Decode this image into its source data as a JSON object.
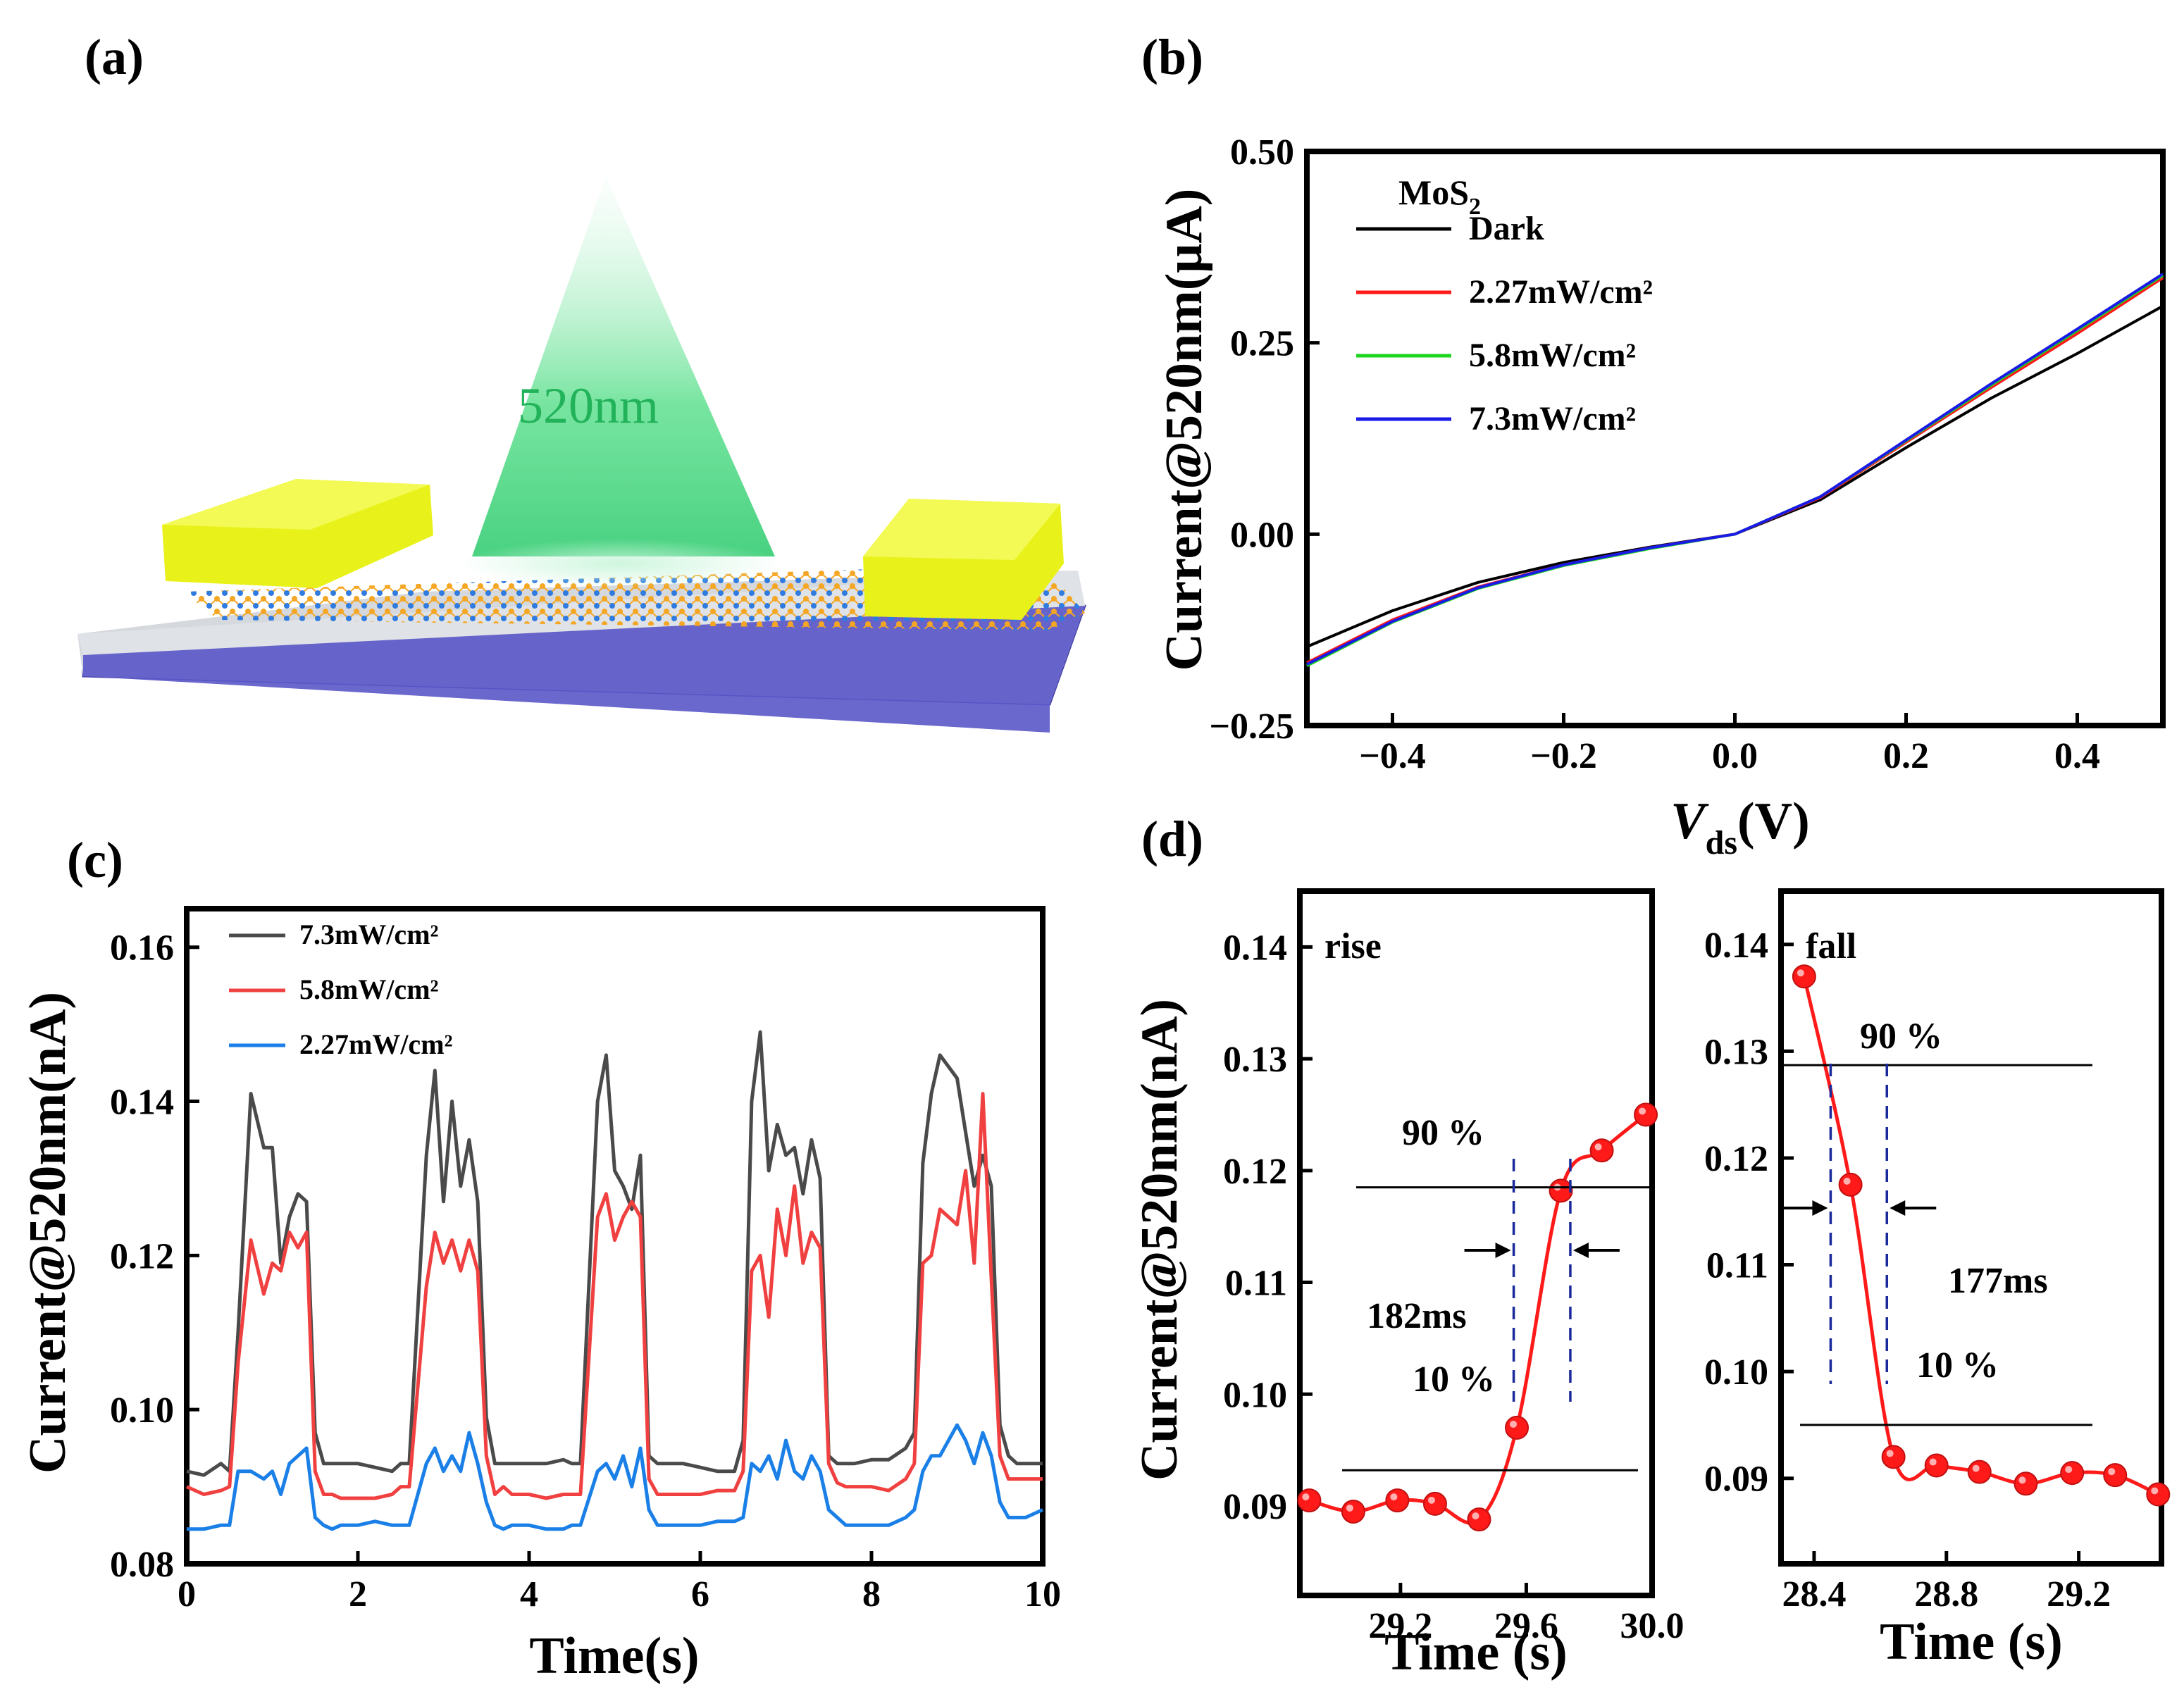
{
  "panels": {
    "a": {
      "label": "(a)",
      "light_label": "520nm",
      "colors": {
        "light": "#3fcf7a",
        "electrode": "#e8f21a",
        "substrate_top": "#d5d8dd",
        "substrate_bottom": "#5a56c8",
        "atom_s": "#f5a623",
        "atom_mo": "#2f7be0"
      }
    },
    "b": {
      "label": "(b)"
    },
    "c": {
      "label": "(c)"
    },
    "d": {
      "label": "(d)"
    }
  },
  "chart_data": [
    {
      "id": "b",
      "type": "line",
      "xlabel_main": "V",
      "xlabel_sub": "ds",
      "xlabel_unit": "(V)",
      "ylabel": "Current@520nm(μA)",
      "xlim": [
        -0.5,
        0.5
      ],
      "ylim": [
        -0.25,
        0.5
      ],
      "xticks": [
        -0.4,
        -0.2,
        0.0,
        0.2,
        0.4
      ],
      "xtick_labels": [
        "−0.4",
        "−0.2",
        "0.0",
        "0.2",
        "0.4"
      ],
      "yticks": [
        -0.25,
        0.0,
        0.25,
        0.5
      ],
      "ytick_labels": [
        "−0.25",
        "0.00",
        "0.25",
        "0.50"
      ],
      "legend_title_main": "MoS",
      "legend_title_sub": "2",
      "legend_position": "top-left",
      "series": [
        {
          "name": "Dark",
          "color": "#000000",
          "x": [
            -0.5,
            -0.4,
            -0.3,
            -0.2,
            -0.1,
            0.0,
            0.1,
            0.2,
            0.3,
            0.4,
            0.5
          ],
          "y": [
            -0.147,
            -0.1,
            -0.063,
            -0.037,
            -0.017,
            0.0,
            0.045,
            0.113,
            0.178,
            0.236,
            0.298
          ]
        },
        {
          "name": "2.27mW/cm²",
          "color": "#ff1a1a",
          "x": [
            -0.5,
            -0.4,
            -0.3,
            -0.2,
            -0.1,
            0.0,
            0.1,
            0.2,
            0.3,
            0.4,
            0.5
          ],
          "y": [
            -0.168,
            -0.112,
            -0.069,
            -0.04,
            -0.018,
            0.0,
            0.048,
            0.12,
            0.192,
            0.262,
            0.335
          ]
        },
        {
          "name": "5.8mW/cm²",
          "color": "#1ed41e",
          "x": [
            -0.5,
            -0.4,
            -0.3,
            -0.2,
            -0.1,
            0.0,
            0.1,
            0.2,
            0.3,
            0.4,
            0.5
          ],
          "y": [
            -0.172,
            -0.115,
            -0.071,
            -0.041,
            -0.019,
            0.0,
            0.049,
            0.122,
            0.195,
            0.266,
            0.338
          ]
        },
        {
          "name": "7.3mW/cm²",
          "color": "#1a1ae6",
          "x": [
            -0.5,
            -0.4,
            -0.3,
            -0.2,
            -0.1,
            0.0,
            0.1,
            0.2,
            0.3,
            0.4,
            0.5
          ],
          "y": [
            -0.17,
            -0.114,
            -0.07,
            -0.04,
            -0.018,
            0.0,
            0.049,
            0.123,
            0.197,
            0.268,
            0.34
          ]
        }
      ]
    },
    {
      "id": "c",
      "type": "line",
      "xlabel": "Time(s)",
      "ylabel": "Current@520nm(nA)",
      "xlim": [
        0,
        10
      ],
      "ylim": [
        0.08,
        0.165
      ],
      "xticks": [
        0,
        2,
        4,
        6,
        8,
        10
      ],
      "xtick_labels": [
        "0",
        "2",
        "4",
        "6",
        "8",
        "10"
      ],
      "yticks": [
        0.08,
        0.1,
        0.12,
        0.14,
        0.16
      ],
      "ytick_labels": [
        "0.08",
        "0.10",
        "0.12",
        "0.14",
        "0.16"
      ],
      "legend_position": "top-left",
      "series": [
        {
          "name": "7.3mW/cm²",
          "color": "#4a4a4a",
          "x": [
            0,
            0.2,
            0.4,
            0.5,
            0.6,
            0.75,
            0.9,
            1.0,
            1.1,
            1.2,
            1.3,
            1.4,
            1.5,
            1.6,
            1.7,
            1.8,
            2.0,
            2.2,
            2.4,
            2.5,
            2.6,
            2.8,
            2.9,
            3.0,
            3.1,
            3.2,
            3.3,
            3.4,
            3.5,
            3.6,
            3.7,
            3.8,
            4.0,
            4.2,
            4.4,
            4.5,
            4.6,
            4.8,
            4.9,
            5.0,
            5.1,
            5.2,
            5.3,
            5.4,
            5.5,
            5.6,
            5.7,
            5.8,
            6.0,
            6.2,
            6.4,
            6.5,
            6.6,
            6.7,
            6.8,
            6.9,
            7.0,
            7.1,
            7.2,
            7.3,
            7.4,
            7.5,
            7.6,
            7.7,
            7.8,
            8.0,
            8.2,
            8.4,
            8.5,
            8.6,
            8.7,
            8.8,
            9.0,
            9.1,
            9.2,
            9.3,
            9.4,
            9.5,
            9.6,
            9.7,
            9.8,
            10.0
          ],
          "y": [
            0.092,
            0.0915,
            0.093,
            0.092,
            0.11,
            0.141,
            0.134,
            0.134,
            0.119,
            0.125,
            0.128,
            0.127,
            0.097,
            0.093,
            0.093,
            0.093,
            0.093,
            0.0925,
            0.092,
            0.093,
            0.093,
            0.133,
            0.144,
            0.127,
            0.14,
            0.129,
            0.135,
            0.127,
            0.099,
            0.093,
            0.093,
            0.093,
            0.093,
            0.093,
            0.0935,
            0.093,
            0.093,
            0.14,
            0.146,
            0.131,
            0.129,
            0.126,
            0.133,
            0.094,
            0.093,
            0.093,
            0.093,
            0.093,
            0.0925,
            0.092,
            0.092,
            0.096,
            0.14,
            0.149,
            0.131,
            0.137,
            0.133,
            0.134,
            0.128,
            0.135,
            0.13,
            0.094,
            0.093,
            0.093,
            0.093,
            0.0935,
            0.0935,
            0.095,
            0.097,
            0.132,
            0.141,
            0.146,
            0.143,
            0.136,
            0.129,
            0.133,
            0.129,
            0.098,
            0.094,
            0.093,
            0.093,
            0.093
          ]
        },
        {
          "name": "5.8mW/cm²",
          "color": "#f04040",
          "x": [
            0,
            0.2,
            0.4,
            0.5,
            0.6,
            0.75,
            0.9,
            1.0,
            1.1,
            1.2,
            1.3,
            1.4,
            1.5,
            1.6,
            1.7,
            1.8,
            2.0,
            2.2,
            2.4,
            2.5,
            2.6,
            2.8,
            2.9,
            3.0,
            3.1,
            3.2,
            3.3,
            3.4,
            3.5,
            3.6,
            3.7,
            3.8,
            4.0,
            4.2,
            4.4,
            4.5,
            4.6,
            4.8,
            4.9,
            5.0,
            5.1,
            5.2,
            5.3,
            5.4,
            5.5,
            5.6,
            5.7,
            5.8,
            6.0,
            6.2,
            6.4,
            6.5,
            6.6,
            6.7,
            6.8,
            6.9,
            7.0,
            7.1,
            7.2,
            7.3,
            7.4,
            7.5,
            7.6,
            7.7,
            7.8,
            8.0,
            8.2,
            8.4,
            8.5,
            8.6,
            8.7,
            8.8,
            9.0,
            9.1,
            9.2,
            9.3,
            9.4,
            9.5,
            9.6,
            9.7,
            9.8,
            10.0
          ],
          "y": [
            0.09,
            0.089,
            0.0895,
            0.09,
            0.106,
            0.122,
            0.115,
            0.119,
            0.118,
            0.123,
            0.121,
            0.123,
            0.092,
            0.089,
            0.089,
            0.0885,
            0.0885,
            0.0885,
            0.089,
            0.09,
            0.09,
            0.116,
            0.123,
            0.119,
            0.122,
            0.118,
            0.122,
            0.118,
            0.094,
            0.089,
            0.09,
            0.089,
            0.089,
            0.0885,
            0.089,
            0.089,
            0.089,
            0.125,
            0.128,
            0.122,
            0.125,
            0.127,
            0.125,
            0.091,
            0.089,
            0.089,
            0.089,
            0.089,
            0.089,
            0.0895,
            0.0895,
            0.092,
            0.118,
            0.12,
            0.112,
            0.126,
            0.12,
            0.129,
            0.119,
            0.123,
            0.121,
            0.093,
            0.0905,
            0.09,
            0.09,
            0.09,
            0.0895,
            0.091,
            0.093,
            0.119,
            0.12,
            0.126,
            0.124,
            0.131,
            0.119,
            0.141,
            0.117,
            0.094,
            0.091,
            0.091,
            0.091,
            0.091
          ]
        },
        {
          "name": "2.27mW/cm²",
          "color": "#1a7fe6",
          "x": [
            0,
            0.2,
            0.4,
            0.5,
            0.6,
            0.75,
            0.9,
            1.0,
            1.1,
            1.2,
            1.3,
            1.4,
            1.5,
            1.6,
            1.7,
            1.8,
            2.0,
            2.2,
            2.4,
            2.5,
            2.6,
            2.8,
            2.9,
            3.0,
            3.1,
            3.2,
            3.3,
            3.4,
            3.5,
            3.6,
            3.7,
            3.8,
            4.0,
            4.2,
            4.4,
            4.5,
            4.6,
            4.8,
            4.9,
            5.0,
            5.1,
            5.2,
            5.3,
            5.4,
            5.5,
            5.6,
            5.7,
            5.8,
            6.0,
            6.2,
            6.4,
            6.5,
            6.6,
            6.7,
            6.8,
            6.9,
            7.0,
            7.1,
            7.2,
            7.3,
            7.4,
            7.5,
            7.6,
            7.7,
            7.8,
            8.0,
            8.2,
            8.4,
            8.5,
            8.6,
            8.7,
            8.8,
            9.0,
            9.1,
            9.2,
            9.3,
            9.4,
            9.5,
            9.6,
            9.7,
            9.8,
            10.0
          ],
          "y": [
            0.0845,
            0.0845,
            0.085,
            0.085,
            0.092,
            0.092,
            0.091,
            0.092,
            0.089,
            0.093,
            0.094,
            0.095,
            0.086,
            0.085,
            0.0845,
            0.085,
            0.085,
            0.0855,
            0.085,
            0.085,
            0.085,
            0.093,
            0.095,
            0.092,
            0.094,
            0.092,
            0.097,
            0.093,
            0.088,
            0.085,
            0.0845,
            0.085,
            0.085,
            0.0845,
            0.0845,
            0.085,
            0.085,
            0.092,
            0.093,
            0.091,
            0.094,
            0.09,
            0.095,
            0.087,
            0.085,
            0.085,
            0.085,
            0.085,
            0.085,
            0.0855,
            0.0855,
            0.086,
            0.093,
            0.092,
            0.094,
            0.091,
            0.096,
            0.092,
            0.091,
            0.094,
            0.092,
            0.087,
            0.086,
            0.085,
            0.085,
            0.085,
            0.085,
            0.086,
            0.087,
            0.092,
            0.094,
            0.094,
            0.098,
            0.096,
            0.093,
            0.097,
            0.094,
            0.088,
            0.086,
            0.086,
            0.086,
            0.087
          ]
        }
      ]
    },
    {
      "id": "d-rise",
      "type": "line",
      "xlabel": "Time (s)",
      "ylabel": "Current@520nm(nA)",
      "xlim": [
        28.88,
        30.0
      ],
      "ylim": [
        0.082,
        0.145
      ],
      "xticks": [
        29.2,
        29.6,
        30.0
      ],
      "xtick_labels": [
        "29.2",
        "29.6",
        "30.0"
      ],
      "yticks": [
        0.09,
        0.1,
        0.11,
        0.12,
        0.13,
        0.14
      ],
      "ytick_labels": [
        "0.09",
        "0.10",
        "0.11",
        "0.12",
        "0.13",
        "0.14"
      ],
      "annotation": "rise",
      "color": "#ff1a1a",
      "points": {
        "x": [
          28.91,
          29.05,
          29.19,
          29.31,
          29.45,
          29.57,
          29.71,
          29.84,
          29.98
        ],
        "y": [
          0.0905,
          0.0895,
          0.0905,
          0.0902,
          0.0888,
          0.097,
          0.1182,
          0.1218,
          0.125
        ]
      },
      "ref_90": 0.1185,
      "ref_10": 0.0932,
      "label_90": "90 %",
      "label_10": "10 %",
      "dash_x": [
        29.56,
        29.74
      ],
      "response_time": "182ms"
    },
    {
      "id": "d-fall",
      "type": "line",
      "xlabel": "Time (s)",
      "yticks": [
        0.09,
        0.1,
        0.11,
        0.12,
        0.13,
        0.14
      ],
      "ytick_labels": [
        "0.09",
        "0.10",
        "0.11",
        "0.12",
        "0.13",
        "0.14"
      ],
      "xlim": [
        28.3,
        29.45
      ],
      "ylim": [
        0.082,
        0.145
      ],
      "xticks": [
        28.4,
        28.8,
        29.2
      ],
      "xtick_labels": [
        "28.4",
        "28.8",
        "29.2"
      ],
      "annotation": "fall",
      "color": "#ff1a1a",
      "points": {
        "x": [
          28.37,
          28.51,
          28.64,
          28.77,
          28.9,
          29.04,
          29.18,
          29.31,
          29.44
        ],
        "y": [
          0.137,
          0.1175,
          0.092,
          0.0912,
          0.0906,
          0.0895,
          0.0905,
          0.0903,
          0.0885
        ]
      },
      "ref_90": 0.1287,
      "ref_10": 0.095,
      "label_90": "90 %",
      "label_10": "10 %",
      "dash_x": [
        28.45,
        28.62
      ],
      "response_time": "177ms"
    }
  ]
}
